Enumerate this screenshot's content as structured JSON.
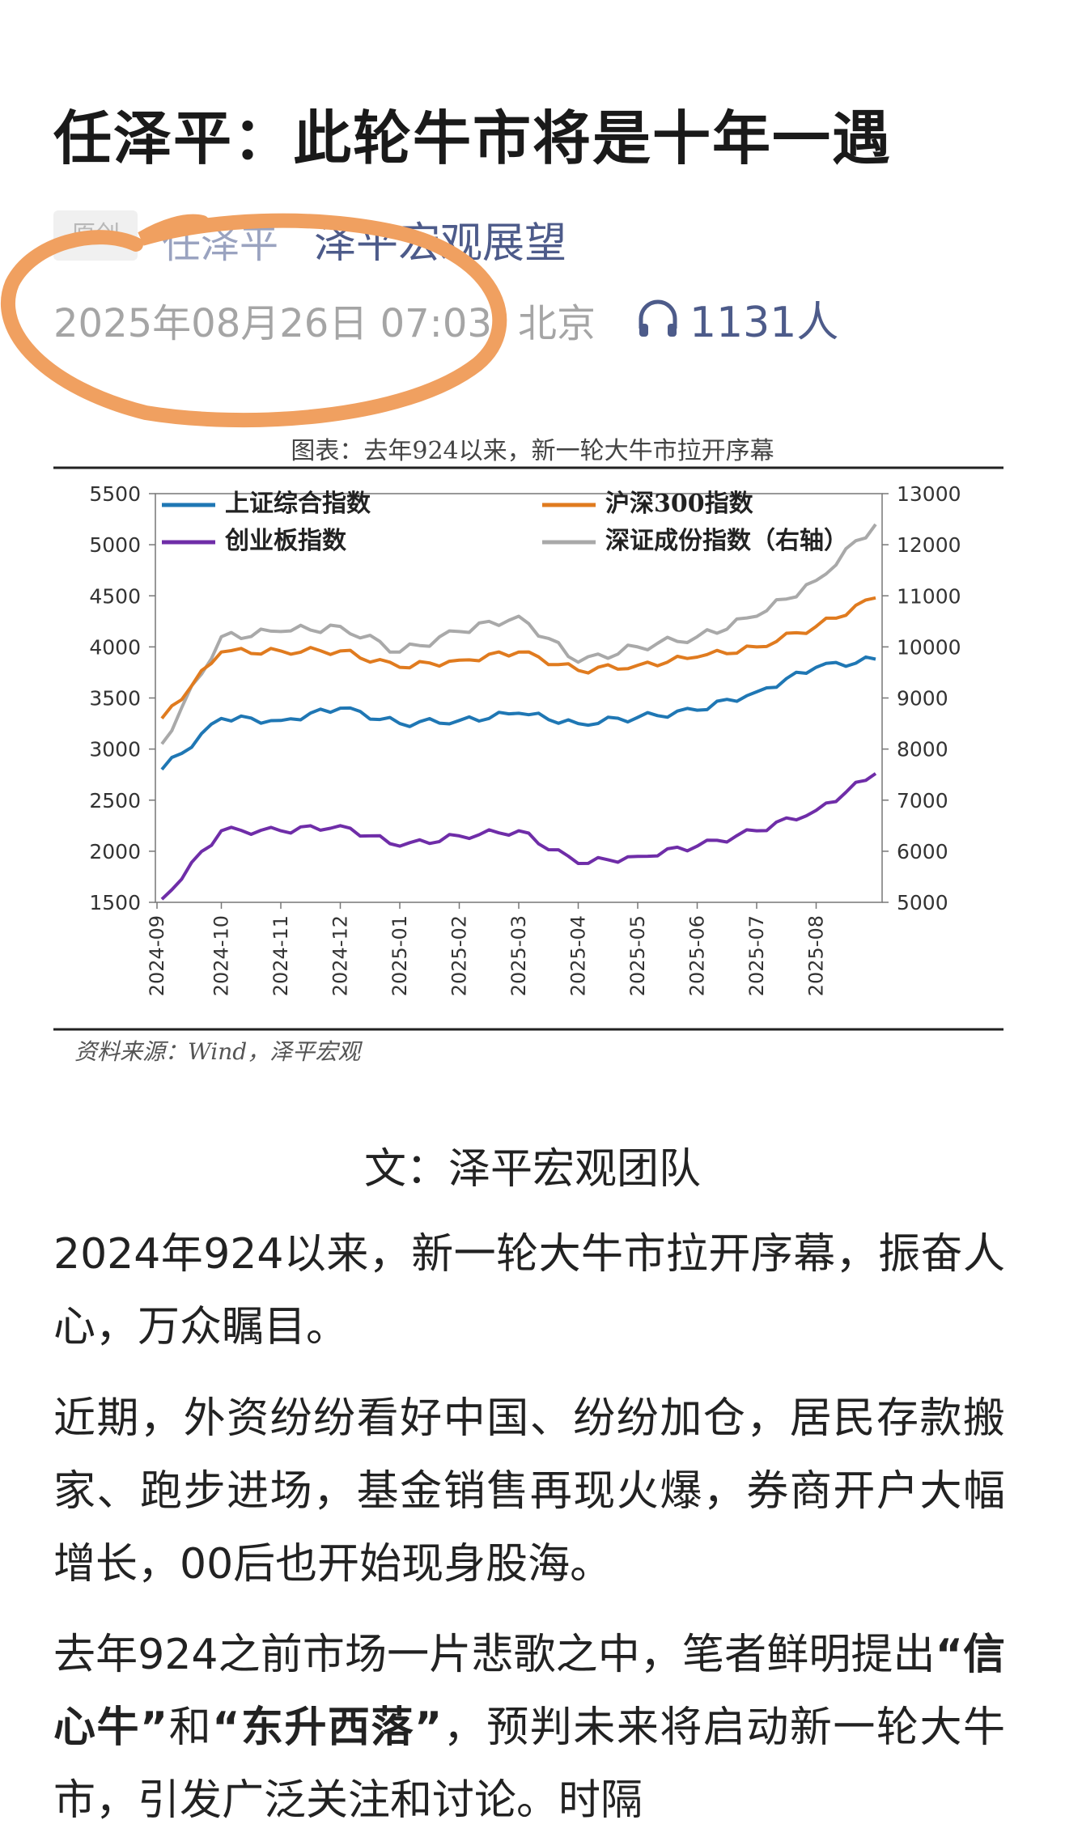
{
  "article": {
    "title": "任泽平：此轮牛市将是十年一遇",
    "tag": "原创",
    "author": "任泽平",
    "account": "泽平宏观展望",
    "date": "2025年08月26日 07:03",
    "location": "北京",
    "listeners": "1131人",
    "figure_caption": "图表：去年924以来，新一轮大牛市拉开序幕",
    "source": "资料来源：Wind，泽平宏观",
    "byline": "文：泽平宏观团队",
    "p1": "2024年924以来，新一轮大牛市拉开序幕，振奋人心，万众瞩目。",
    "p2": "近期，外资纷纷看好中国、纷纷加仓，居民存款搬家、跑步进场，基金销售再现火爆，券商开户大幅增长，00后也开始现身股海。",
    "p3_a": "去年924之前市场一片悲歌之中，笔者鲜明提出",
    "p3_b1": "“信心牛”",
    "p3_c": "和",
    "p3_b2": "“东升西落”",
    "p3_d": "，预判未来将启动新一轮大牛市，引发广泛关注和讨论。时隔"
  },
  "icons": {
    "listen": "headphones-icon"
  },
  "colors": {
    "sh": "#1f77b4",
    "hs300": "#e07b1f",
    "cyb": "#6f2da8",
    "sz": "#a9a9a9",
    "annotation": "#f0a060",
    "account": "#4d5b8a"
  },
  "chart_data": {
    "type": "line",
    "title": "图表：去年924以来，新一轮大牛市拉开序幕",
    "x": [
      "2024-09",
      "2024-10",
      "2024-11",
      "2024-12",
      "2025-01",
      "2025-02",
      "2025-03",
      "2025-04",
      "2025-05",
      "2025-06",
      "2025-07",
      "2025-08",
      "2025-08-26"
    ],
    "y_left": {
      "ylim": [
        1500,
        5500
      ],
      "ticks": [
        "1500",
        "2000",
        "2500",
        "3000",
        "3500",
        "4000",
        "4500",
        "5000",
        "5500"
      ]
    },
    "y_right": {
      "ylim": [
        5000,
        13000
      ],
      "ticks": [
        "5000",
        "6000",
        "7000",
        "8000",
        "9000",
        "10000",
        "11000",
        "12000",
        "13000"
      ]
    },
    "legend": [
      "上证综合指数",
      "沪深300指数",
      "创业板指数",
      "深证成份指数（右轴）"
    ],
    "series": [
      {
        "name": "上证综合指数",
        "axis": "left",
        "values": [
          2800,
          3300,
          3280,
          3400,
          3250,
          3280,
          3350,
          3250,
          3310,
          3380,
          3560,
          3800,
          3880
        ]
      },
      {
        "name": "沪深300指数",
        "axis": "left",
        "values": [
          3300,
          3950,
          3960,
          3960,
          3800,
          3870,
          3950,
          3770,
          3820,
          3900,
          4000,
          4200,
          4480
        ]
      },
      {
        "name": "创业板指数",
        "axis": "left",
        "values": [
          1530,
          2200,
          2200,
          2250,
          2050,
          2150,
          2200,
          1880,
          1950,
          2050,
          2200,
          2400,
          2760
        ]
      },
      {
        "name": "深证成份指数（右轴）",
        "axis": "right",
        "values": [
          8100,
          10200,
          10300,
          10400,
          9900,
          10300,
          10600,
          9700,
          10000,
          10200,
          10600,
          11300,
          12400
        ]
      }
    ],
    "grid": false,
    "legend_position": "top"
  }
}
